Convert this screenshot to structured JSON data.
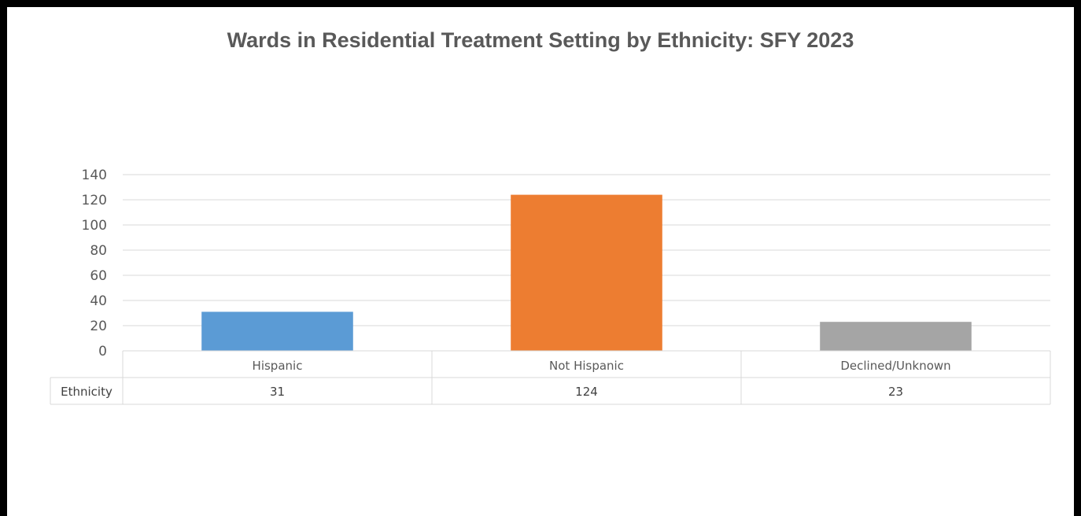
{
  "chart_data": {
    "type": "bar",
    "title": "Wards in Residential Treatment Setting by Ethnicity: SFY 2023",
    "categories": [
      "Hispanic",
      "Not Hispanic",
      "Declined/Unknown"
    ],
    "series": [
      {
        "name": "Ethnicity",
        "values": [
          31,
          124,
          23
        ]
      }
    ],
    "data_table_values": [
      "31",
      "124",
      "23"
    ],
    "ylim": [
      0,
      140
    ],
    "yticks": [
      0,
      20,
      40,
      60,
      80,
      100,
      120,
      140
    ],
    "grid": true,
    "colors": [
      "#5b9bd5",
      "#ed7d31",
      "#a5a5a5"
    ],
    "data_table": true
  }
}
